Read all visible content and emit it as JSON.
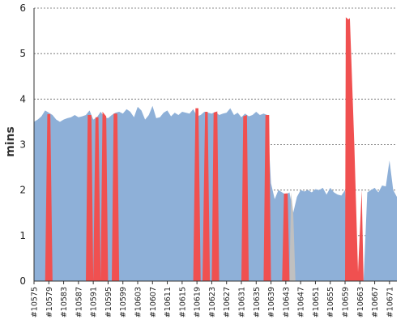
{
  "chart_data": {
    "type": "area",
    "ylabel": "mins",
    "ylim": [
      0,
      6
    ],
    "grid": true,
    "yticks": [
      "0",
      "1",
      "2",
      "3",
      "4",
      "5",
      "6"
    ],
    "x_range": [
      10575,
      10673
    ],
    "xtick_labels": [
      "#10575",
      "#10579",
      "#10583",
      "#10587",
      "#10591",
      "#10595",
      "#10599",
      "#10603",
      "#10607",
      "#10611",
      "#10615",
      "#10619",
      "#10623",
      "#10627",
      "#10631",
      "#10635",
      "#10639",
      "#10643",
      "#10647",
      "#10651",
      "#10655",
      "#10659",
      "#10663",
      "#10667",
      "#10671"
    ],
    "colors": {
      "pass": "#8eb0d8",
      "fail": "#f05050",
      "unstable": "#c0c0c0"
    },
    "series": [
      {
        "kind": "pass",
        "points": [
          [
            10575,
            3.5
          ],
          [
            10576,
            3.55
          ],
          [
            10577,
            3.62
          ],
          [
            10578,
            3.75
          ],
          [
            10579,
            3.7
          ],
          [
            10580,
            3.65
          ],
          [
            10581,
            3.55
          ],
          [
            10582,
            3.5
          ],
          [
            10583,
            3.55
          ],
          [
            10584,
            3.58
          ],
          [
            10585,
            3.6
          ],
          [
            10586,
            3.65
          ],
          [
            10587,
            3.6
          ],
          [
            10588,
            3.62
          ],
          [
            10589,
            3.65
          ],
          [
            10590,
            3.75
          ],
          [
            10591,
            3.55
          ],
          [
            10592,
            3.6
          ],
          [
            10593,
            3.72
          ],
          [
            10594,
            3.6
          ],
          [
            10595,
            3.58
          ],
          [
            10596,
            3.65
          ],
          [
            10597,
            3.7
          ],
          [
            10598,
            3.72
          ],
          [
            10599,
            3.68
          ],
          [
            10600,
            3.78
          ],
          [
            10601,
            3.72
          ],
          [
            10602,
            3.6
          ],
          [
            10603,
            3.83
          ],
          [
            10604,
            3.75
          ],
          [
            10605,
            3.55
          ],
          [
            10606,
            3.65
          ],
          [
            10607,
            3.85
          ],
          [
            10608,
            3.58
          ],
          [
            10609,
            3.6
          ],
          [
            10610,
            3.7
          ],
          [
            10611,
            3.75
          ],
          [
            10612,
            3.62
          ],
          [
            10613,
            3.7
          ],
          [
            10614,
            3.65
          ],
          [
            10615,
            3.72
          ],
          [
            10616,
            3.7
          ],
          [
            10617,
            3.68
          ],
          [
            10618,
            3.78
          ],
          [
            10619,
            3.62
          ],
          [
            10620,
            3.65
          ],
          [
            10621,
            3.72
          ],
          [
            10622,
            3.7
          ],
          [
            10623,
            3.68
          ],
          [
            10624,
            3.72
          ],
          [
            10625,
            3.65
          ],
          [
            10626,
            3.68
          ],
          [
            10627,
            3.7
          ],
          [
            10628,
            3.8
          ],
          [
            10629,
            3.65
          ],
          [
            10630,
            3.7
          ],
          [
            10631,
            3.6
          ],
          [
            10632,
            3.68
          ],
          [
            10633,
            3.62
          ],
          [
            10634,
            3.65
          ],
          [
            10635,
            3.72
          ],
          [
            10636,
            3.65
          ],
          [
            10637,
            3.68
          ],
          [
            10638,
            3.65
          ],
          [
            10639,
            2.15
          ],
          [
            10640,
            1.8
          ],
          [
            10641,
            2.0
          ],
          [
            10642,
            1.95
          ],
          [
            10643,
            1.9
          ],
          [
            10644,
            1.95
          ],
          [
            10645,
            1.5
          ],
          [
            10646,
            1.85
          ],
          [
            10647,
            2.0
          ],
          [
            10648,
            1.97
          ],
          [
            10649,
            2.0
          ],
          [
            10650,
            1.95
          ],
          [
            10651,
            2.02
          ],
          [
            10652,
            2.0
          ],
          [
            10653,
            2.05
          ],
          [
            10654,
            1.9
          ],
          [
            10655,
            2.05
          ],
          [
            10656,
            1.95
          ],
          [
            10657,
            1.9
          ],
          [
            10658,
            1.88
          ],
          [
            10659,
            2.0
          ],
          [
            10660,
            0
          ],
          [
            10661,
            0
          ],
          [
            10662,
            0
          ],
          [
            10663,
            0
          ],
          [
            10664,
            0
          ],
          [
            10665,
            1.95
          ],
          [
            10666,
            2.0
          ],
          [
            10667,
            2.05
          ],
          [
            10668,
            1.95
          ],
          [
            10669,
            2.1
          ],
          [
            10670,
            2.08
          ],
          [
            10671,
            2.65
          ],
          [
            10672,
            2.0
          ],
          [
            10673,
            1.85
          ]
        ]
      },
      {
        "kind": "fail",
        "points": [
          [
            10578,
            0
          ],
          [
            10578.6,
            3.67
          ],
          [
            10579.4,
            3.67
          ],
          [
            10580,
            0
          ],
          [
            10589,
            0
          ],
          [
            10589.5,
            3.65
          ],
          [
            10590.5,
            3.65
          ],
          [
            10591,
            0
          ],
          [
            10591,
            0
          ],
          [
            10591.6,
            3.6
          ],
          [
            10592.4,
            3.6
          ],
          [
            10593,
            0
          ],
          [
            10593,
            0
          ],
          [
            10593.5,
            3.72
          ],
          [
            10594.5,
            3.62
          ],
          [
            10595,
            0
          ],
          [
            10596,
            0
          ],
          [
            10596.5,
            3.68
          ],
          [
            10597.5,
            3.68
          ],
          [
            10598,
            0
          ],
          [
            10618,
            0
          ],
          [
            10618.6,
            3.8
          ],
          [
            10619.4,
            3.8
          ],
          [
            10620,
            0
          ],
          [
            10620.5,
            0
          ],
          [
            10621.2,
            3.72
          ],
          [
            10621.9,
            3.72
          ],
          [
            10622.5,
            0
          ],
          [
            10623,
            0
          ],
          [
            10623.5,
            3.7
          ],
          [
            10624.5,
            3.73
          ],
          [
            10625,
            0
          ],
          [
            10631,
            0
          ],
          [
            10631.5,
            3.62
          ],
          [
            10632.5,
            3.65
          ],
          [
            10633,
            0
          ],
          [
            10637,
            0
          ],
          [
            10637.5,
            3.65
          ],
          [
            10638.5,
            3.65
          ],
          [
            10639,
            0
          ],
          [
            10642,
            0
          ],
          [
            10642.5,
            1.92
          ],
          [
            10643.5,
            1.93
          ],
          [
            10644,
            0
          ],
          [
            10659,
            0
          ],
          [
            10659.2,
            5.8
          ],
          [
            10659.9,
            5.75
          ],
          [
            10660.3,
            5.78
          ],
          [
            10661.5,
            3.0
          ],
          [
            10662.5,
            0.2
          ],
          [
            10663.5,
            2.0
          ],
          [
            10664,
            0
          ]
        ]
      },
      {
        "kind": "unstable",
        "points": [
          [
            10644,
            0
          ],
          [
            10644.4,
            1.95
          ],
          [
            10645,
            1.5
          ],
          [
            10645.6,
            0
          ]
        ]
      }
    ]
  }
}
